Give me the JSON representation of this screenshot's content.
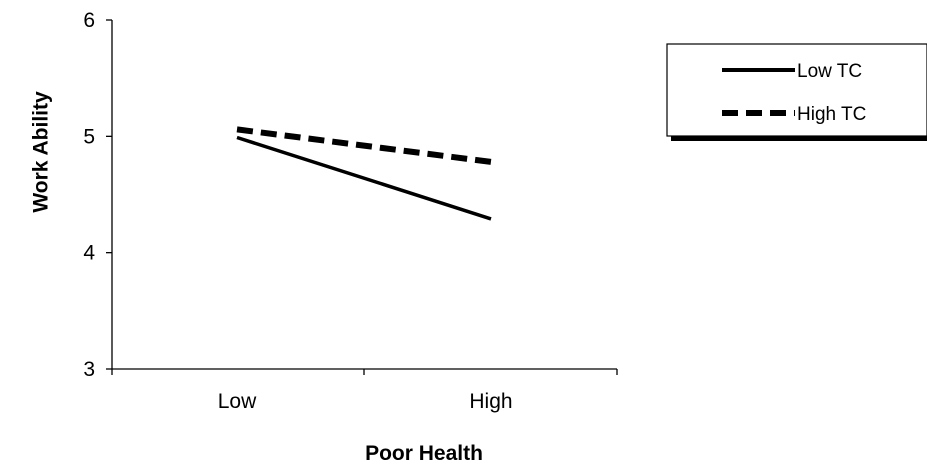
{
  "chart_data": {
    "type": "line",
    "xlabel": "Poor Health",
    "ylabel": "Work Ability",
    "categories": [
      "Low",
      "High"
    ],
    "ylim": [
      3,
      6
    ],
    "yticks": [
      "3",
      "4",
      "5",
      "6"
    ],
    "legend_position": "right",
    "grid": false,
    "series": [
      {
        "name": "Low TC",
        "values": [
          4.99,
          4.29
        ],
        "line_style": "solid",
        "color": "#000000"
      },
      {
        "name": "High TC",
        "values": [
          5.06,
          4.78
        ],
        "line_style": "dashed",
        "color": "#000000"
      }
    ]
  }
}
